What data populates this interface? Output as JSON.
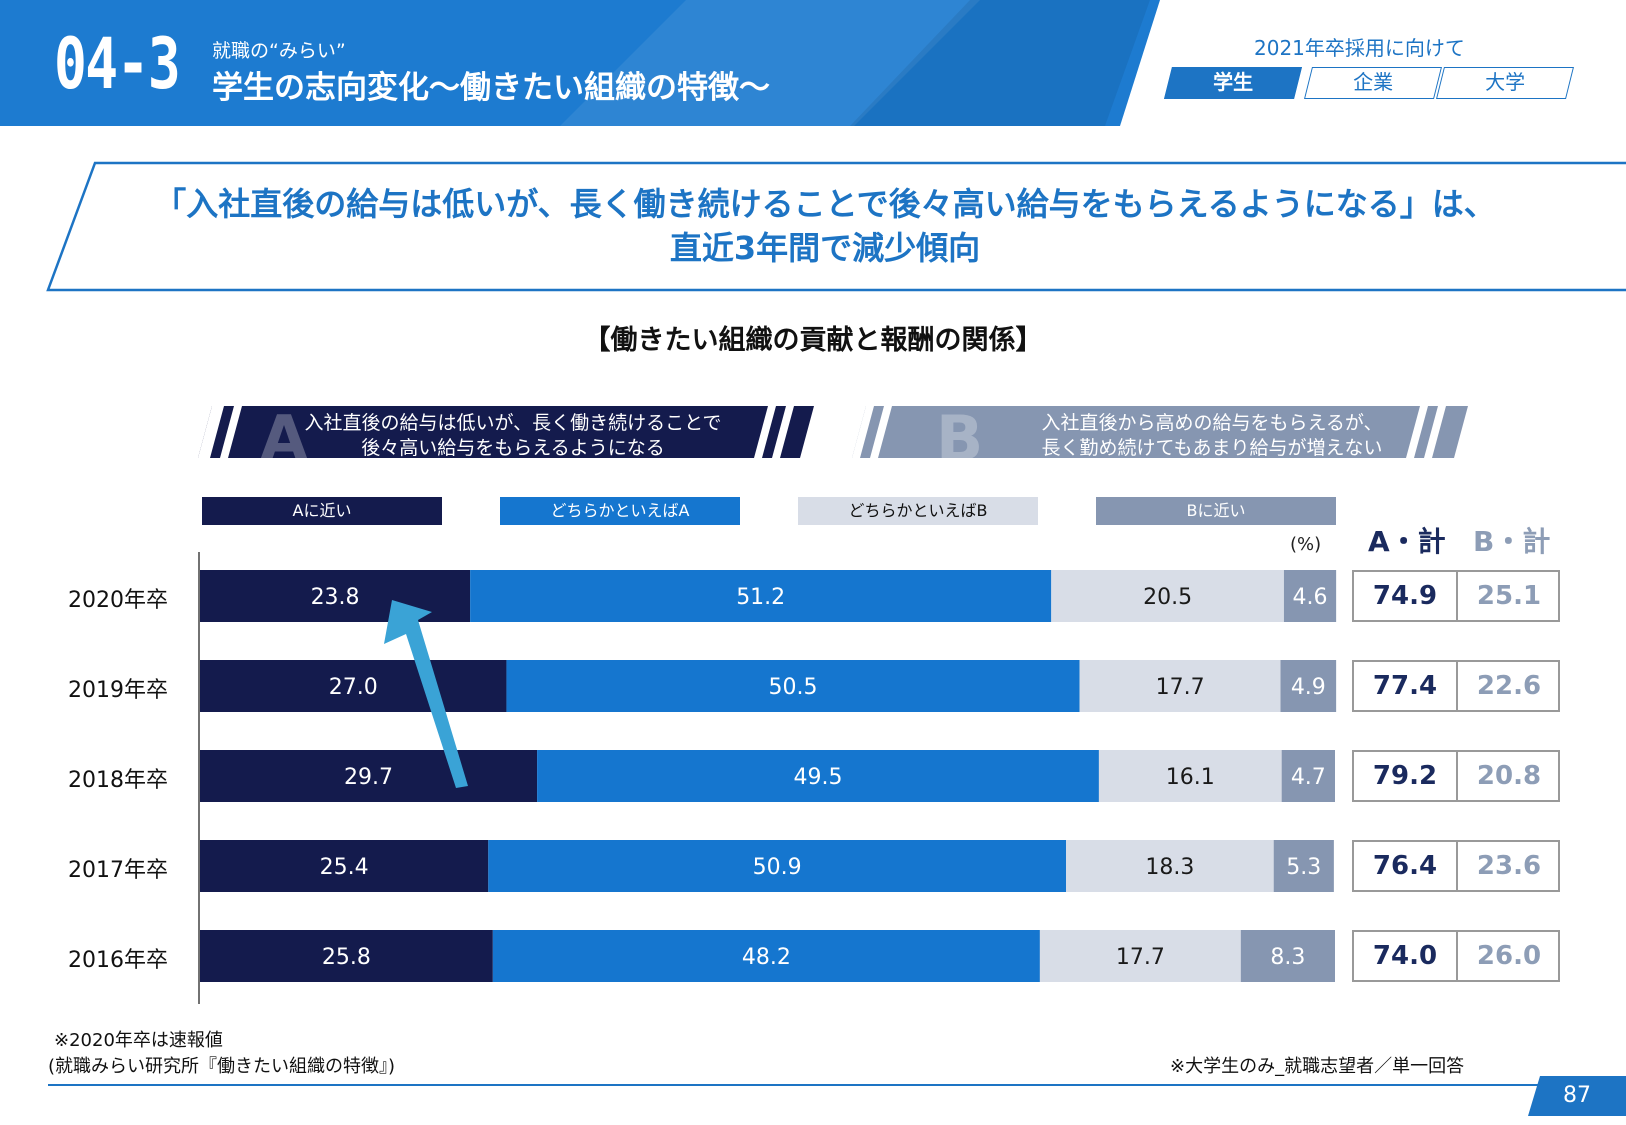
{
  "header": {
    "section_number": "04-3",
    "subtitle": "就職の“みらい”",
    "title": "学生の志向変化～働きたい組織の特徴～",
    "context": "2021年卒採用に向けて",
    "tabs": [
      {
        "label": "学生",
        "active": true
      },
      {
        "label": "企業",
        "active": false
      },
      {
        "label": "大学",
        "active": false
      }
    ]
  },
  "headline": {
    "line1": "「入社直後の給与は低いが、長く働き続けることで後々高い給与をもらえるようになる」は、",
    "line2": "直近3年間で減少傾向"
  },
  "chart_title": "【働きたい組織の貢献と報酬の関係】",
  "option_a": {
    "letter": "A",
    "line1": "入社直後の給与は低いが、長く働き続けることで",
    "line2": "後々高い給与をもらえるようになる"
  },
  "option_b": {
    "letter": "B",
    "line1": "入社直後から高めの給与をもらえるが、",
    "line2": "長く勤め続けてもあまり給与が増えない"
  },
  "legend": [
    "Aに近い",
    "どちらかといえばA",
    "どちらかといえばB",
    "Bに近い"
  ],
  "unit": "(%)",
  "totals_headers": {
    "a": "A・計",
    "b": "B・計"
  },
  "colors": {
    "a_close": "#141b4d",
    "lean_a": "#1576cf",
    "lean_b": "#d8dde7",
    "b_close": "#8696b1",
    "arrow": "#3aa3d6",
    "accent": "#1d74c4"
  },
  "chart_data": {
    "type": "bar",
    "orientation": "horizontal",
    "stacked": true,
    "categories": [
      "2020年卒",
      "2019年卒",
      "2018年卒",
      "2017年卒",
      "2016年卒"
    ],
    "series": [
      {
        "name": "Aに近い",
        "values": [
          23.8,
          27.0,
          29.7,
          25.4,
          25.8
        ]
      },
      {
        "name": "どちらかといえばA",
        "values": [
          51.2,
          50.5,
          49.5,
          50.9,
          48.2
        ]
      },
      {
        "name": "どちらかといえばB",
        "values": [
          20.5,
          17.7,
          16.1,
          18.3,
          17.7
        ]
      },
      {
        "name": "Bに近い",
        "values": [
          4.6,
          4.9,
          4.7,
          5.3,
          8.3
        ]
      }
    ],
    "totals": {
      "A・計": [
        74.9,
        77.4,
        79.2,
        76.4,
        74.0
      ],
      "B・計": [
        25.1,
        22.6,
        20.8,
        23.6,
        26.0
      ]
    },
    "value_labels": [
      [
        "23.8",
        "51.2",
        "20.5",
        "4.6"
      ],
      [
        "27.0",
        "50.5",
        "17.7",
        "4.9"
      ],
      [
        "29.7",
        "49.5",
        "16.1",
        "4.7"
      ],
      [
        "25.4",
        "50.9",
        "18.3",
        "5.3"
      ],
      [
        "25.8",
        "48.2",
        "17.7",
        "8.3"
      ]
    ],
    "total_labels": [
      [
        "74.9",
        "25.1"
      ],
      [
        "77.4",
        "22.6"
      ],
      [
        "79.2",
        "20.8"
      ],
      [
        "76.4",
        "23.6"
      ],
      [
        "74.0",
        "26.0"
      ]
    ],
    "xlim": [
      0,
      100
    ],
    "grid": false,
    "annotation": "arrow from 2018年卒 Aに近い bar up to 2020年卒 Aに近い bar"
  },
  "notes": {
    "preliminary": "※2020年卒は速報値",
    "source": "(就職みらい研究所『働きたい組織の特徴』)",
    "scope": "※大学生のみ_就職志望者／単一回答"
  },
  "page_number": "87"
}
